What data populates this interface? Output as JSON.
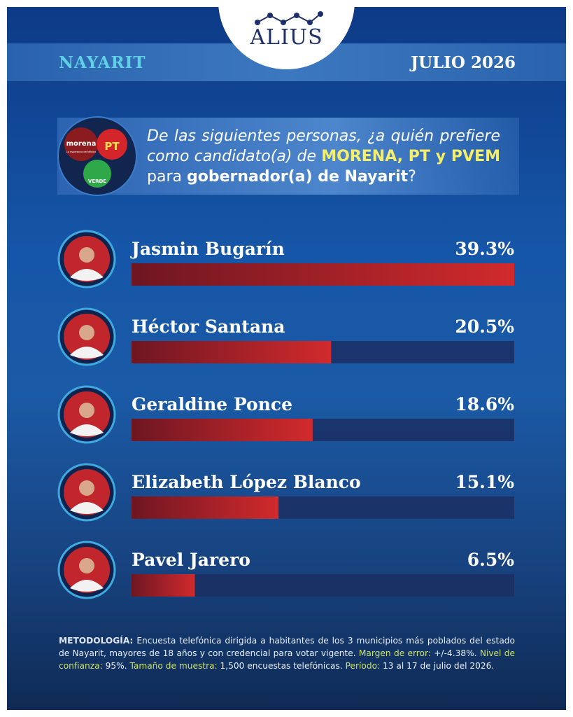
{
  "header": {
    "logo": "ALIUS",
    "region": "NAYARIT",
    "date": "JULIO 2026"
  },
  "parties": {
    "morena": "morena",
    "morena_tagline": "La esperanza de México",
    "pt": "PT",
    "verde": "VERDE"
  },
  "question": [
    "De las siguientes personas, ¿a quién prefiere como candidato(a) de",
    "MORENA, PT y PVEM",
    "para",
    "gobernador(a) de Nayarit",
    "?"
  ],
  "chart_data": {
    "type": "bar",
    "orientation": "horizontal",
    "categories": [
      "Jasmin Bugarín",
      "Héctor Santana",
      "Geraldine Ponce",
      "Elizabeth López Blanco",
      "Pavel Jarero"
    ],
    "values": [
      39.3,
      20.5,
      18.6,
      15.1,
      6.5
    ],
    "value_labels": [
      "39.3%",
      "20.5%",
      "18.6%",
      "15.1%",
      "6.5%"
    ],
    "color": "#d12a2c",
    "track_color": "#1b2f63"
  },
  "methodology": [
    {
      "label": "METODOLOGÍA:",
      "text": "Encuesta telefónica dirigida a habitantes de los 3 municipios más poblados del estado de Nayarit, mayores de 18 años y con credencial para votar vigente."
    },
    {
      "label": "Margen de error:",
      "text": "+/-4.38%."
    },
    {
      "label": "Nivel de confianza:",
      "text": "95%."
    },
    {
      "label": "Tamaño de muestra:",
      "text": "1,500 encuestas telefónicas."
    },
    {
      "label": "Período:",
      "text": "13 al 17 de julio del 2026."
    }
  ]
}
